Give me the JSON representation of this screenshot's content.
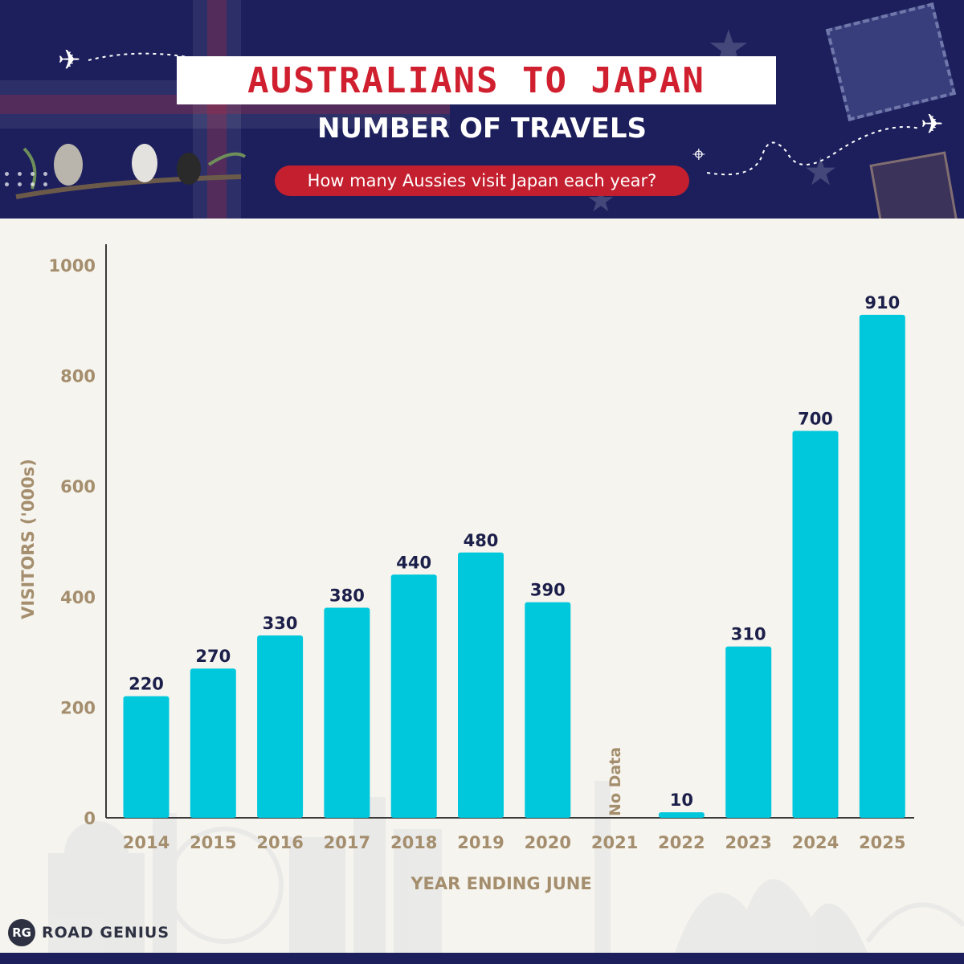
{
  "header": {
    "title": "AUSTRALIANS TO JAPAN",
    "subtitle": "NUMBER OF TRAVELS",
    "question": "How many Aussies visit Japan each year?",
    "bg_color": "#1c1f5c",
    "title_color": "#d0202f",
    "pill_color": "#c41f2e"
  },
  "brand": {
    "mark": "RG",
    "name": "ROAD GENIUS"
  },
  "chart_data": {
    "type": "bar",
    "title": "AUSTRALIANS TO JAPAN",
    "subtitle": "NUMBER OF TRAVELS",
    "xlabel": "YEAR ENDING JUNE",
    "ylabel": "VISITORS ('000s)",
    "categories": [
      "2014",
      "2015",
      "2016",
      "2017",
      "2018",
      "2019",
      "2020",
      "2021",
      "2022",
      "2023",
      "2024",
      "2025"
    ],
    "values": [
      220,
      270,
      330,
      380,
      440,
      480,
      390,
      null,
      10,
      310,
      700,
      910
    ],
    "data_labels": [
      "220",
      "270",
      "330",
      "380",
      "440",
      "480",
      "390",
      "No Data",
      "10",
      "310",
      "700",
      "910"
    ],
    "yticks": [
      0,
      200,
      400,
      600,
      800,
      1000
    ],
    "ylim": [
      0,
      1000
    ],
    "bar_color": "#00c8dc",
    "grid": false,
    "legend": false
  }
}
